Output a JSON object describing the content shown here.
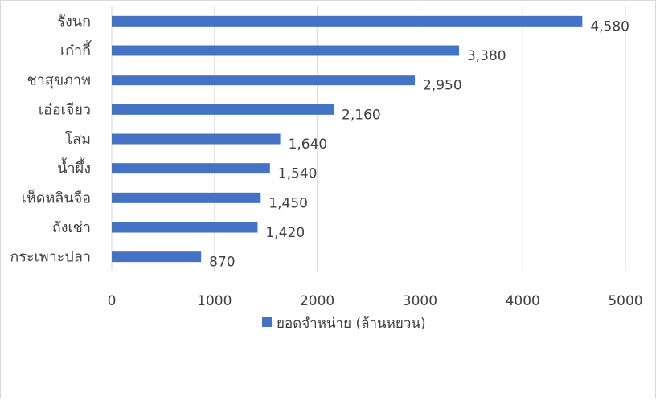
{
  "chart_data": {
    "type": "bar",
    "orientation": "horizontal",
    "categories": [
      "รังนก",
      "เก๋ากี้",
      "ชาสุขภาพ",
      "เอ๋อเจียว",
      "โสม",
      "น้ำผึ้ง",
      "เห็ดหลินจือ",
      "ถั่งเช่า",
      "กระเพาะปลา"
    ],
    "series": [
      {
        "name": "ยอดจำหน่าย (ล้านหยวน)",
        "values": [
          4580,
          3380,
          2950,
          2160,
          1640,
          1540,
          1450,
          1420,
          870
        ],
        "value_labels": [
          "4,580",
          "3,380",
          "2,950",
          "2,160",
          "1,640",
          "1,540",
          "1,450",
          "1,420",
          "870"
        ],
        "color": "#4472c4"
      }
    ],
    "x_ticks": [
      "0",
      "1000",
      "2000",
      "3000",
      "4000",
      "5000"
    ],
    "xlim": [
      0,
      5000
    ],
    "grid": true,
    "legend_position": "bottom"
  }
}
